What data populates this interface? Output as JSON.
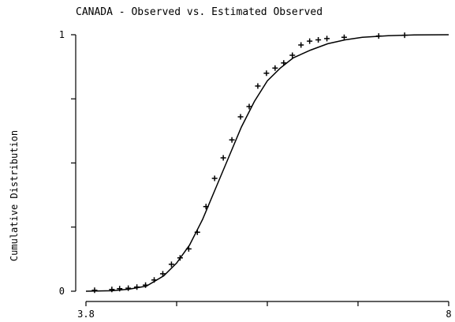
{
  "chart_data": {
    "type": "scatter",
    "title": "CANADA - Observed vs. Estimated Observed",
    "xlabel": "",
    "ylabel": "Cumulative Distribution",
    "xlim": [
      3.8,
      8
    ],
    "ylim": [
      0,
      1
    ],
    "x_ticks": [
      3.8,
      4.85,
      5.9,
      6.95,
      8
    ],
    "x_tick_labels": [
      "3.8",
      "",
      "",
      "",
      "8"
    ],
    "y_ticks": [
      0,
      0.25,
      0.5,
      0.75,
      1
    ],
    "y_tick_labels": [
      "0",
      "",
      "",
      "",
      "1"
    ],
    "grid": false,
    "series": [
      {
        "kind": "markers",
        "marker": "+",
        "points": [
          [
            3.9,
            0.004
          ],
          [
            4.1,
            0.007
          ],
          [
            4.19,
            0.01
          ],
          [
            4.29,
            0.012
          ],
          [
            4.39,
            0.016
          ],
          [
            4.49,
            0.024
          ],
          [
            4.59,
            0.044
          ],
          [
            4.69,
            0.068
          ],
          [
            4.79,
            0.105
          ],
          [
            4.89,
            0.13
          ],
          [
            4.99,
            0.165
          ],
          [
            5.09,
            0.23
          ],
          [
            5.19,
            0.33
          ],
          [
            5.29,
            0.44
          ],
          [
            5.39,
            0.52
          ],
          [
            5.49,
            0.59
          ],
          [
            5.59,
            0.68
          ],
          [
            5.69,
            0.72
          ],
          [
            5.79,
            0.8
          ],
          [
            5.89,
            0.85
          ],
          [
            5.99,
            0.87
          ],
          [
            6.09,
            0.89
          ],
          [
            6.19,
            0.92
          ],
          [
            6.29,
            0.96
          ],
          [
            6.39,
            0.975
          ],
          [
            6.49,
            0.98
          ],
          [
            6.59,
            0.985
          ],
          [
            6.79,
            0.99
          ],
          [
            7.19,
            0.995
          ],
          [
            7.49,
            0.998
          ]
        ]
      },
      {
        "kind": "line",
        "points": [
          [
            3.8,
            0.0
          ],
          [
            4.1,
            0.002
          ],
          [
            4.3,
            0.008
          ],
          [
            4.5,
            0.02
          ],
          [
            4.7,
            0.06
          ],
          [
            4.85,
            0.11
          ],
          [
            5.0,
            0.18
          ],
          [
            5.15,
            0.28
          ],
          [
            5.3,
            0.4
          ],
          [
            5.45,
            0.52
          ],
          [
            5.6,
            0.64
          ],
          [
            5.75,
            0.74
          ],
          [
            5.9,
            0.82
          ],
          [
            6.05,
            0.87
          ],
          [
            6.2,
            0.91
          ],
          [
            6.4,
            0.94
          ],
          [
            6.6,
            0.965
          ],
          [
            6.8,
            0.98
          ],
          [
            7.0,
            0.99
          ],
          [
            7.3,
            0.996
          ],
          [
            7.6,
            0.999
          ],
          [
            8.0,
            1.0
          ]
        ]
      }
    ]
  }
}
